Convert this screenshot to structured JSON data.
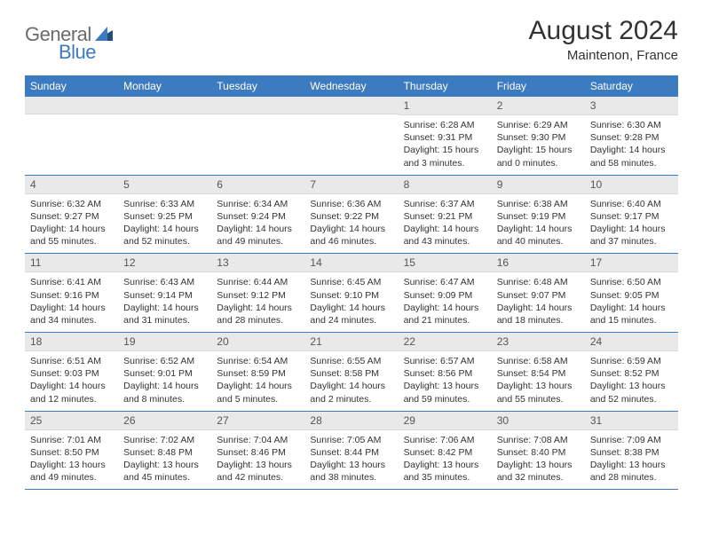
{
  "logo": {
    "part1": "General",
    "part2": "Blue"
  },
  "title": "August 2024",
  "location": "Maintenon, France",
  "colors": {
    "header_bg": "#3c7bbf",
    "header_text": "#ffffff",
    "daynum_bg": "#e9e9e9",
    "text": "#333333",
    "logo_gray": "#6b6b6b",
    "logo_blue": "#3c7bbf",
    "row_border": "#3c7bbf"
  },
  "dow": [
    "Sunday",
    "Monday",
    "Tuesday",
    "Wednesday",
    "Thursday",
    "Friday",
    "Saturday"
  ],
  "weeks": [
    [
      {
        "n": "",
        "sunrise": "",
        "sunset": "",
        "daylight": ""
      },
      {
        "n": "",
        "sunrise": "",
        "sunset": "",
        "daylight": ""
      },
      {
        "n": "",
        "sunrise": "",
        "sunset": "",
        "daylight": ""
      },
      {
        "n": "",
        "sunrise": "",
        "sunset": "",
        "daylight": ""
      },
      {
        "n": "1",
        "sunrise": "Sunrise: 6:28 AM",
        "sunset": "Sunset: 9:31 PM",
        "daylight": "Daylight: 15 hours and 3 minutes."
      },
      {
        "n": "2",
        "sunrise": "Sunrise: 6:29 AM",
        "sunset": "Sunset: 9:30 PM",
        "daylight": "Daylight: 15 hours and 0 minutes."
      },
      {
        "n": "3",
        "sunrise": "Sunrise: 6:30 AM",
        "sunset": "Sunset: 9:28 PM",
        "daylight": "Daylight: 14 hours and 58 minutes."
      }
    ],
    [
      {
        "n": "4",
        "sunrise": "Sunrise: 6:32 AM",
        "sunset": "Sunset: 9:27 PM",
        "daylight": "Daylight: 14 hours and 55 minutes."
      },
      {
        "n": "5",
        "sunrise": "Sunrise: 6:33 AM",
        "sunset": "Sunset: 9:25 PM",
        "daylight": "Daylight: 14 hours and 52 minutes."
      },
      {
        "n": "6",
        "sunrise": "Sunrise: 6:34 AM",
        "sunset": "Sunset: 9:24 PM",
        "daylight": "Daylight: 14 hours and 49 minutes."
      },
      {
        "n": "7",
        "sunrise": "Sunrise: 6:36 AM",
        "sunset": "Sunset: 9:22 PM",
        "daylight": "Daylight: 14 hours and 46 minutes."
      },
      {
        "n": "8",
        "sunrise": "Sunrise: 6:37 AM",
        "sunset": "Sunset: 9:21 PM",
        "daylight": "Daylight: 14 hours and 43 minutes."
      },
      {
        "n": "9",
        "sunrise": "Sunrise: 6:38 AM",
        "sunset": "Sunset: 9:19 PM",
        "daylight": "Daylight: 14 hours and 40 minutes."
      },
      {
        "n": "10",
        "sunrise": "Sunrise: 6:40 AM",
        "sunset": "Sunset: 9:17 PM",
        "daylight": "Daylight: 14 hours and 37 minutes."
      }
    ],
    [
      {
        "n": "11",
        "sunrise": "Sunrise: 6:41 AM",
        "sunset": "Sunset: 9:16 PM",
        "daylight": "Daylight: 14 hours and 34 minutes."
      },
      {
        "n": "12",
        "sunrise": "Sunrise: 6:43 AM",
        "sunset": "Sunset: 9:14 PM",
        "daylight": "Daylight: 14 hours and 31 minutes."
      },
      {
        "n": "13",
        "sunrise": "Sunrise: 6:44 AM",
        "sunset": "Sunset: 9:12 PM",
        "daylight": "Daylight: 14 hours and 28 minutes."
      },
      {
        "n": "14",
        "sunrise": "Sunrise: 6:45 AM",
        "sunset": "Sunset: 9:10 PM",
        "daylight": "Daylight: 14 hours and 24 minutes."
      },
      {
        "n": "15",
        "sunrise": "Sunrise: 6:47 AM",
        "sunset": "Sunset: 9:09 PM",
        "daylight": "Daylight: 14 hours and 21 minutes."
      },
      {
        "n": "16",
        "sunrise": "Sunrise: 6:48 AM",
        "sunset": "Sunset: 9:07 PM",
        "daylight": "Daylight: 14 hours and 18 minutes."
      },
      {
        "n": "17",
        "sunrise": "Sunrise: 6:50 AM",
        "sunset": "Sunset: 9:05 PM",
        "daylight": "Daylight: 14 hours and 15 minutes."
      }
    ],
    [
      {
        "n": "18",
        "sunrise": "Sunrise: 6:51 AM",
        "sunset": "Sunset: 9:03 PM",
        "daylight": "Daylight: 14 hours and 12 minutes."
      },
      {
        "n": "19",
        "sunrise": "Sunrise: 6:52 AM",
        "sunset": "Sunset: 9:01 PM",
        "daylight": "Daylight: 14 hours and 8 minutes."
      },
      {
        "n": "20",
        "sunrise": "Sunrise: 6:54 AM",
        "sunset": "Sunset: 8:59 PM",
        "daylight": "Daylight: 14 hours and 5 minutes."
      },
      {
        "n": "21",
        "sunrise": "Sunrise: 6:55 AM",
        "sunset": "Sunset: 8:58 PM",
        "daylight": "Daylight: 14 hours and 2 minutes."
      },
      {
        "n": "22",
        "sunrise": "Sunrise: 6:57 AM",
        "sunset": "Sunset: 8:56 PM",
        "daylight": "Daylight: 13 hours and 59 minutes."
      },
      {
        "n": "23",
        "sunrise": "Sunrise: 6:58 AM",
        "sunset": "Sunset: 8:54 PM",
        "daylight": "Daylight: 13 hours and 55 minutes."
      },
      {
        "n": "24",
        "sunrise": "Sunrise: 6:59 AM",
        "sunset": "Sunset: 8:52 PM",
        "daylight": "Daylight: 13 hours and 52 minutes."
      }
    ],
    [
      {
        "n": "25",
        "sunrise": "Sunrise: 7:01 AM",
        "sunset": "Sunset: 8:50 PM",
        "daylight": "Daylight: 13 hours and 49 minutes."
      },
      {
        "n": "26",
        "sunrise": "Sunrise: 7:02 AM",
        "sunset": "Sunset: 8:48 PM",
        "daylight": "Daylight: 13 hours and 45 minutes."
      },
      {
        "n": "27",
        "sunrise": "Sunrise: 7:04 AM",
        "sunset": "Sunset: 8:46 PM",
        "daylight": "Daylight: 13 hours and 42 minutes."
      },
      {
        "n": "28",
        "sunrise": "Sunrise: 7:05 AM",
        "sunset": "Sunset: 8:44 PM",
        "daylight": "Daylight: 13 hours and 38 minutes."
      },
      {
        "n": "29",
        "sunrise": "Sunrise: 7:06 AM",
        "sunset": "Sunset: 8:42 PM",
        "daylight": "Daylight: 13 hours and 35 minutes."
      },
      {
        "n": "30",
        "sunrise": "Sunrise: 7:08 AM",
        "sunset": "Sunset: 8:40 PM",
        "daylight": "Daylight: 13 hours and 32 minutes."
      },
      {
        "n": "31",
        "sunrise": "Sunrise: 7:09 AM",
        "sunset": "Sunset: 8:38 PM",
        "daylight": "Daylight: 13 hours and 28 minutes."
      }
    ]
  ]
}
